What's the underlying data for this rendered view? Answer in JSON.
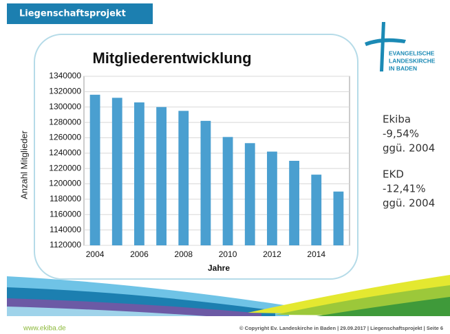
{
  "header": {
    "title": "Liegenschaftsprojekt"
  },
  "logo": {
    "lines": [
      "EVANGELISCHE",
      "LANDESKIRCHE",
      "IN BADEN"
    ]
  },
  "notes": [
    [
      "Ekiba",
      "-9,54%",
      "ggü. 2004"
    ],
    [
      "EKD",
      "-12,41%",
      "ggü. 2004"
    ]
  ],
  "footer": {
    "left": "www.ekiba.de",
    "right": "© Copyright Ev. Landeskirche in Baden | 29.09.2017 | Liegenschaftsprojekt | Seite 6"
  },
  "chart_data": {
    "type": "bar",
    "title": "Mitgliederentwicklung",
    "x_label": "Jahre",
    "y_label": "Anzahl Mitglieder",
    "categories": [
      "2004",
      null,
      "2006",
      null,
      "2008",
      null,
      "2010",
      null,
      "2012",
      null,
      "2014",
      null
    ],
    "values": [
      1316000,
      1312000,
      1306000,
      1300000,
      1295000,
      1282000,
      1261000,
      1253000,
      1242000,
      1230000,
      1212000,
      1190000
    ],
    "color": "#4a9fd0",
    "ylim": [
      1120000,
      1340000
    ],
    "yticks": [
      1120000,
      1140000,
      1160000,
      1180000,
      1200000,
      1220000,
      1240000,
      1260000,
      1280000,
      1300000,
      1320000,
      1340000
    ],
    "grid": true
  }
}
